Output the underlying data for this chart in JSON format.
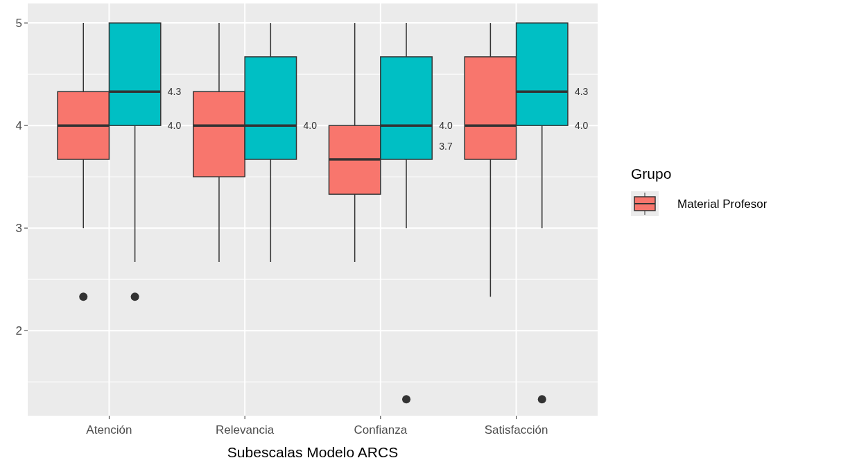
{
  "chart_data": {
    "type": "box",
    "xlabel": "Subescalas Modelo ARCS",
    "legend_title": "Grupo",
    "legend": "right",
    "grid": true,
    "categories": [
      "Atención",
      "Relevancia",
      "Confianza",
      "Satisfacción"
    ],
    "ylim": [
      1.17,
      5.19
    ],
    "yticks": [
      2,
      3,
      4,
      5
    ],
    "series": [
      {
        "name": "Material Profesor",
        "color": "#f8766d",
        "boxes": [
          {
            "low": 3,
            "q1": 3.67,
            "median": 4,
            "q3": 4.33,
            "high": 5,
            "outliers": [
              2.33
            ]
          },
          {
            "low": 2.67,
            "q1": 3.5,
            "median": 4,
            "q3": 4.33,
            "high": 5
          },
          {
            "low": 2.67,
            "q1": 3.33,
            "median": 3.67,
            "q3": 4,
            "high": 5
          },
          {
            "low": 2.33,
            "q1": 3.67,
            "median": 4,
            "q3": 4.67,
            "high": 5
          }
        ]
      },
      {
        "color": "#00bfc4",
        "boxes": [
          {
            "low": 2.67,
            "q1": 4,
            "median": 4.33,
            "q3": 5,
            "high": 5,
            "outliers": [
              2.33
            ]
          },
          {
            "low": 2.67,
            "q1": 3.67,
            "median": 4,
            "q3": 4.67,
            "high": 5
          },
          {
            "low": 3,
            "q1": 3.67,
            "median": 4,
            "q3": 4.67,
            "high": 5,
            "outliers": [
              1.33
            ]
          },
          {
            "low": 3,
            "q1": 4,
            "median": 4.33,
            "q3": 5,
            "high": 5,
            "outliers": [
              1.33
            ]
          }
        ]
      }
    ],
    "annotations": [
      "4.3",
      "4.0",
      "4.0",
      "4.0",
      "3.7",
      "4.3",
      "4.0"
    ]
  }
}
